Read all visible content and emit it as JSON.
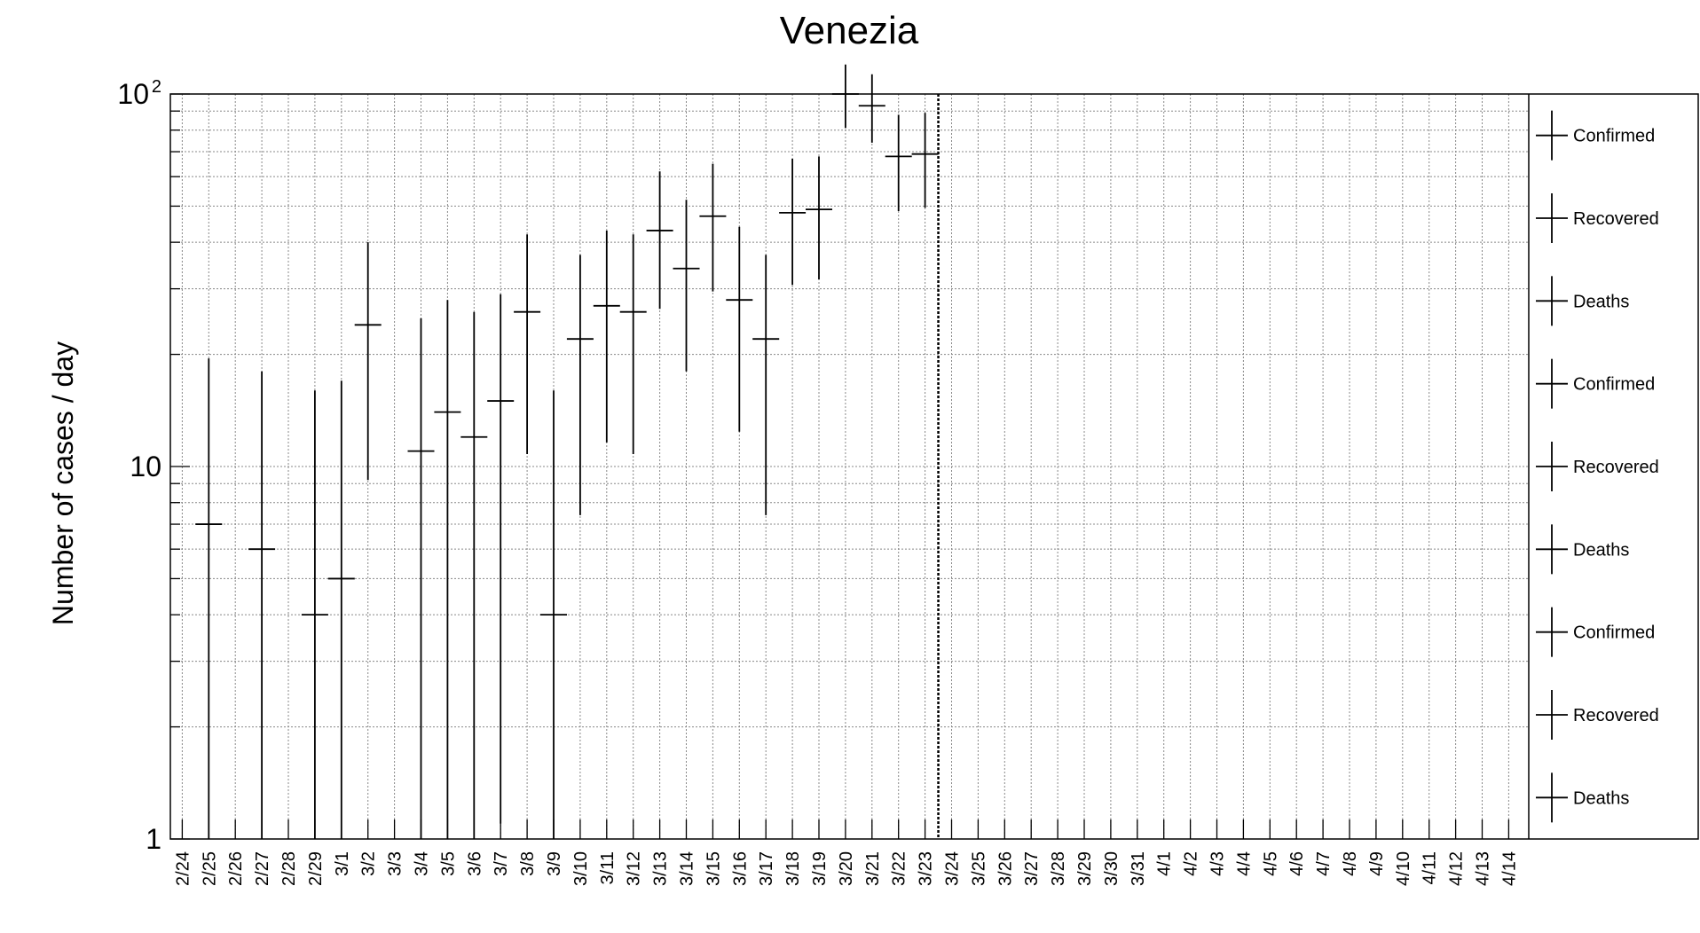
{
  "chart_data": {
    "type": "scatter",
    "title": "Venezia",
    "xlabel": "",
    "ylabel": "Number of cases / day",
    "y_scale": "log",
    "ylim": [
      1,
      100
    ],
    "y_ticks": [
      {
        "value": 1,
        "label": "1"
      },
      {
        "value": 10,
        "label": "10"
      },
      {
        "value": 100,
        "label": "10",
        "exponent": "2"
      }
    ],
    "categories": [
      "2/24",
      "2/25",
      "2/26",
      "2/27",
      "2/28",
      "2/29",
      "3/1",
      "3/2",
      "3/3",
      "3/4",
      "3/5",
      "3/6",
      "3/7",
      "3/8",
      "3/9",
      "3/10",
      "3/11",
      "3/12",
      "3/13",
      "3/14",
      "3/15",
      "3/16",
      "3/17",
      "3/18",
      "3/19",
      "3/20",
      "3/21",
      "3/22",
      "3/23",
      "3/24",
      "3/25",
      "3/26",
      "3/27",
      "3/28",
      "3/29",
      "3/30",
      "3/31",
      "4/1",
      "4/2",
      "4/3",
      "4/4",
      "4/5",
      "4/6",
      "4/7",
      "4/8",
      "4/9",
      "4/10",
      "4/11",
      "4/12",
      "4/13",
      "4/14"
    ],
    "grid": true,
    "marker_line_category": "3/23",
    "series": [
      {
        "name": "Confirmed",
        "points": [
          {
            "x": "2/25",
            "y": 7,
            "low": 1,
            "high": 19.5
          },
          {
            "x": "2/27",
            "y": 6,
            "low": 1,
            "high": 18
          },
          {
            "x": "2/29",
            "y": 4,
            "low": 1,
            "high": 16
          },
          {
            "x": "3/1",
            "y": 5,
            "low": 1,
            "high": 17
          },
          {
            "x": "3/2",
            "y": 24,
            "low": 9.2,
            "high": 40
          },
          {
            "x": "3/4",
            "y": 11,
            "low": 1,
            "high": 25
          },
          {
            "x": "3/5",
            "y": 14,
            "low": 1,
            "high": 28
          },
          {
            "x": "3/6",
            "y": 12,
            "low": 1,
            "high": 26
          },
          {
            "x": "3/7",
            "y": 15,
            "low": 1.1,
            "high": 29
          },
          {
            "x": "3/8",
            "y": 26,
            "low": 10.8,
            "high": 42
          },
          {
            "x": "3/9",
            "y": 4,
            "low": 1,
            "high": 16
          },
          {
            "x": "3/10",
            "y": 22,
            "low": 7.4,
            "high": 37
          },
          {
            "x": "3/11",
            "y": 27,
            "low": 11.6,
            "high": 43
          },
          {
            "x": "3/12",
            "y": 26,
            "low": 10.8,
            "high": 42
          },
          {
            "x": "3/13",
            "y": 43,
            "low": 26.5,
            "high": 62
          },
          {
            "x": "3/14",
            "y": 34,
            "low": 18,
            "high": 52
          },
          {
            "x": "3/15",
            "y": 47,
            "low": 29.5,
            "high": 65
          },
          {
            "x": "3/16",
            "y": 28,
            "low": 12.4,
            "high": 44
          },
          {
            "x": "3/17",
            "y": 22,
            "low": 7.4,
            "high": 37
          },
          {
            "x": "3/18",
            "y": 48,
            "low": 30.7,
            "high": 67
          },
          {
            "x": "3/19",
            "y": 49,
            "low": 31.8,
            "high": 68
          },
          {
            "x": "3/20",
            "y": 100,
            "low": 81,
            "high": 120
          },
          {
            "x": "3/21",
            "y": 93,
            "low": 74,
            "high": 113
          },
          {
            "x": "3/22",
            "y": 68,
            "low": 48.5,
            "high": 88
          },
          {
            "x": "3/23",
            "y": 69,
            "low": 49.5,
            "high": 89
          }
        ]
      }
    ],
    "legend": {
      "placement": "right",
      "entries": [
        "Confirmed",
        "Recovered",
        "Deaths",
        "Confirmed",
        "Recovered",
        "Deaths",
        "Confirmed",
        "Recovered",
        "Deaths"
      ]
    }
  }
}
